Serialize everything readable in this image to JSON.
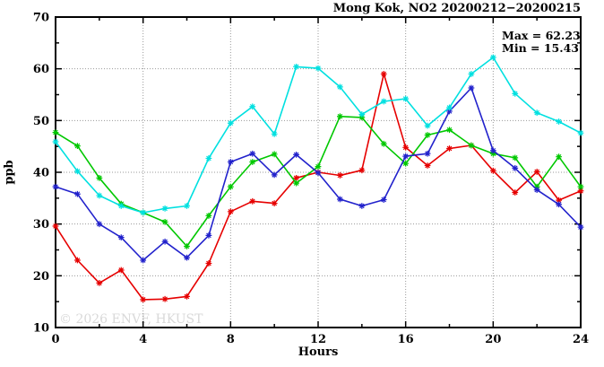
{
  "header": {
    "title": "Mong Kok, NO2 20200212−20200215"
  },
  "annotations": {
    "max_label": "Max = 62.23",
    "min_label": "Min = 15.43"
  },
  "watermark": "© 2026 ENVF, HKUST",
  "chart_data": {
    "type": "line",
    "title": "Mong Kok, NO2 20200212−20200215",
    "xlabel": "Hours",
    "ylabel": "ppb",
    "xlim": [
      0,
      24
    ],
    "ylim": [
      10,
      70
    ],
    "xticks_major": [
      0,
      4,
      8,
      12,
      16,
      20,
      24
    ],
    "xtick_minor_step": 2,
    "yticks_major": [
      10,
      20,
      30,
      40,
      50,
      60,
      70
    ],
    "ytick_minor_step": 5,
    "grid": "dotted",
    "grid_color": "#999999",
    "max_value": 62.23,
    "min_value": 15.43,
    "x": [
      0,
      1,
      2,
      3,
      4,
      5,
      6,
      7,
      8,
      9,
      10,
      11,
      12,
      13,
      14,
      15,
      16,
      17,
      18,
      19,
      20,
      21,
      22,
      23,
      24
    ],
    "series": [
      {
        "name": "series-red",
        "color": "#e60000",
        "values": [
          29.6,
          23.0,
          18.6,
          21.1,
          15.4,
          15.5,
          16.0,
          22.4,
          32.4,
          34.4,
          34.0,
          38.9,
          40.0,
          39.4,
          40.4,
          59.0,
          44.8,
          41.3,
          44.6,
          45.2,
          40.3,
          36.1,
          40.1,
          34.6,
          36.4
        ]
      },
      {
        "name": "series-green",
        "color": "#00c800",
        "values": [
          47.7,
          45.1,
          38.9,
          33.9,
          32.2,
          30.4,
          25.7,
          31.6,
          37.2,
          42.0,
          43.5,
          37.9,
          41.1,
          50.8,
          50.6,
          45.5,
          41.7,
          47.2,
          48.2,
          45.2,
          43.6,
          42.8,
          37.2,
          43.0,
          37.2
        ]
      },
      {
        "name": "series-blue",
        "color": "#2222cc",
        "values": [
          37.2,
          35.8,
          30.0,
          27.4,
          23.0,
          26.6,
          23.5,
          27.8,
          42.0,
          43.6,
          39.5,
          43.4,
          39.9,
          34.8,
          33.5,
          34.7,
          43.1,
          43.6,
          51.8,
          56.3,
          44.2,
          40.8,
          36.6,
          33.8,
          29.4
        ]
      },
      {
        "name": "series-cyan",
        "color": "#00e0e0",
        "values": [
          45.9,
          40.2,
          35.5,
          33.5,
          32.2,
          33.0,
          33.5,
          42.7,
          49.5,
          52.7,
          47.4,
          60.4,
          60.1,
          56.5,
          51.2,
          53.7,
          54.2,
          49.0,
          52.5,
          59.0,
          62.2,
          55.2,
          51.5,
          49.8,
          47.6
        ]
      }
    ]
  }
}
